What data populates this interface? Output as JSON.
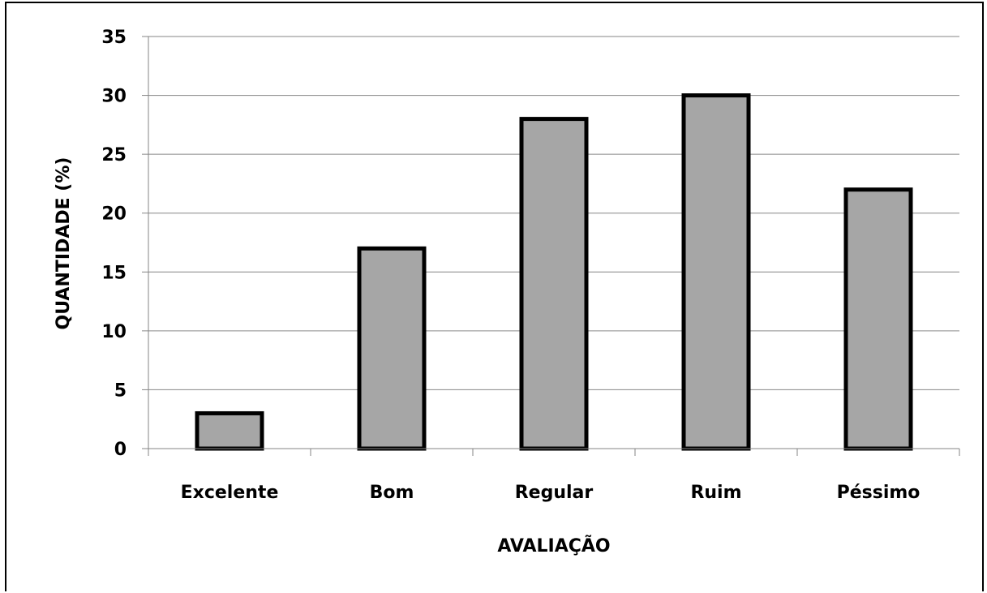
{
  "chart_data": {
    "type": "bar",
    "categories": [
      "Excelente",
      "Bom",
      "Regular",
      "Ruim",
      "Péssimo"
    ],
    "values": [
      3,
      17,
      28,
      30,
      22
    ],
    "title": "",
    "xlabel": "AVALIAÇÃO",
    "ylabel": "QUANTIDADE (%)",
    "ylim": [
      0,
      35
    ],
    "yticks": [
      "0",
      "5",
      "10",
      "15",
      "20",
      "25",
      "30",
      "35"
    ],
    "grid": true,
    "legend": "none",
    "bar_color": "#a6a6a6",
    "bar_edge_color": "#000000",
    "gridline_color": "#868686"
  }
}
